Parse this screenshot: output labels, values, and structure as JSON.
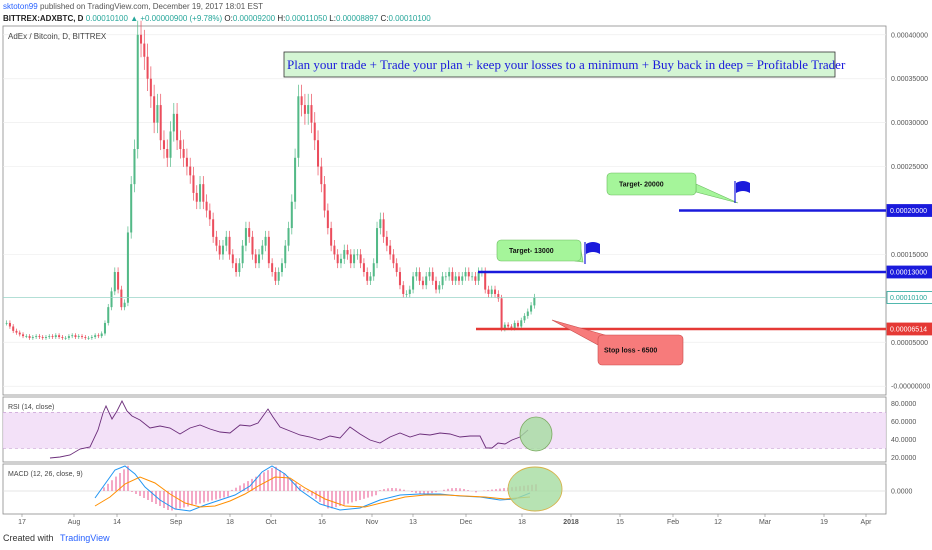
{
  "header": {
    "author": "sktoton99",
    "published_text": "published on TradingView.com, December 19, 2017 18:01 EST",
    "symbol": "BITTREX:ADXBTC, D",
    "last": "0.00010100",
    "change": "▲ +0.00000900 (+9.78%)",
    "o_label": "O:",
    "o": "0.00009200",
    "h_label": "H:",
    "h": "0.00011050",
    "l_label": "L:",
    "l": "0.00008897",
    "c_label": "C:",
    "c": "0.00010100"
  },
  "chart_data": {
    "type": "candlestick",
    "title": "AdEx / Bitcoin, D, BITTREX",
    "annotation_banner": "Plan your trade + Trade your plan + keep your losses to a minimum + Buy back in deep = Profitable Trader",
    "y_ticks": [
      "0.00040000",
      "0.00035000",
      "0.00030000",
      "0.00025000",
      "0.00015000",
      "0.00005000",
      "-0.00000000"
    ],
    "y_tick_values": [
      0.0004,
      0.00035,
      0.0003,
      0.00025,
      0.00015,
      5e-05,
      0.0
    ],
    "ylim": [
      -1e-05,
      0.00041
    ],
    "x_ticks": [
      "17",
      "Aug",
      "14",
      "Sep",
      "18",
      "Oct",
      "16",
      "Nov",
      "13",
      "Dec",
      "18",
      "2018",
      "15",
      "Feb",
      "12",
      "Mar",
      "19",
      "Apr"
    ],
    "price_levels": [
      {
        "label": "0.00020000",
        "value": 0.0002,
        "color": "#1a1adc"
      },
      {
        "label": "0.00013000",
        "value": 0.00013,
        "color": "#1a1adc"
      },
      {
        "label": "0.00010100",
        "value": 0.000101,
        "color": "#26a69a"
      },
      {
        "label": "0.00006514",
        "value": 6.514e-05,
        "color": "#e53935"
      }
    ],
    "callouts": [
      {
        "text": "Target- 20000",
        "kind": "target"
      },
      {
        "text": "Target- 13000",
        "kind": "target"
      },
      {
        "text": "Stop loss - 6500",
        "kind": "stop"
      }
    ],
    "close_series": [
      7.2e-05,
      6.8e-05,
      6.3e-05,
      6.1e-05,
      5.9e-05,
      5.7e-05,
      5.7e-05,
      5.5e-05,
      5.6e-05,
      5.7e-05,
      5.6e-05,
      5.5e-05,
      5.6e-05,
      5.7e-05,
      5.6e-05,
      5.8e-05,
      5.6e-05,
      5.5e-05,
      5.5e-05,
      5.7e-05,
      5.8e-05,
      5.6e-05,
      5.7e-05,
      5.6e-05,
      5.5e-05,
      5.5e-05,
      5.6e-05,
      5.8e-05,
      5.7e-05,
      6e-05,
      7.2e-05,
      9e-05,
      0.000108,
      0.00013,
      0.00011,
      9e-05,
      9.5e-05,
      0.000175,
      0.00023,
      0.00027,
      0.0004,
      0.00039,
      0.000375,
      0.00035,
      0.00033,
      0.0003,
      0.00032,
      0.00028,
      0.00027,
      0.00026,
      0.00029,
      0.00031,
      0.00028,
      0.00027,
      0.00026,
      0.00025,
      0.00024,
      0.00022,
      0.00021,
      0.00023,
      0.00021,
      0.0002,
      0.00019,
      0.00017,
      0.00016,
      0.00015,
      0.00016,
      0.00017,
      0.00015,
      0.00014,
      0.00013,
      0.00014,
      0.00016,
      0.00018,
      0.00017,
      0.00015,
      0.00014,
      0.00015,
      0.00016,
      0.00017,
      0.00014,
      0.00013,
      0.00012,
      0.00013,
      0.00014,
      0.00016,
      0.00018,
      0.00021,
      0.00026,
      0.00033,
      0.00032,
      0.00031,
      0.00032,
      0.0003,
      0.00028,
      0.00025,
      0.00023,
      0.0002,
      0.00018,
      0.00016,
      0.00015,
      0.00014,
      0.000145,
      0.000155,
      0.00015,
      0.00014,
      0.00015,
      0.00015,
      0.00014,
      0.00013,
      0.00012,
      0.000125,
      0.00014,
      0.00018,
      0.00019,
      0.00017,
      0.00016,
      0.00015,
      0.00014,
      0.00013,
      0.000115,
      0.000105,
      0.000105,
      0.00011,
      0.000125,
      0.00013,
      0.00012,
      0.000115,
      0.000125,
      0.00013,
      0.00012,
      0.00011,
      0.000115,
      0.000125,
      0.000125,
      0.00013,
      0.00012,
      0.000125,
      0.00012,
      0.000125,
      0.00013,
      0.000125,
      0.000125,
      0.00012,
      0.00013,
      0.00013,
      0.00011,
      0.000105,
      0.00011,
      0.000105,
      0.0001,
      6.5e-05,
      7e-05,
      6.8e-05,
      6.6e-05,
      7.2e-05,
      6.8e-05,
      7.5e-05,
      8e-05,
      8.5e-05,
      9.2e-05,
      0.000101
    ],
    "rsi": {
      "label": "RSI (14, close)",
      "y_ticks": [
        "80.0000",
        "60.0000",
        "40.0000",
        "20.0000"
      ],
      "y_tick_values": [
        80,
        60,
        40,
        20
      ],
      "band": [
        30,
        70
      ],
      "ylim": [
        15,
        87
      ]
    },
    "macd": {
      "label": "MACD (12, 26, close, 9)",
      "y_ticks": [
        "0.0000"
      ],
      "y_tick_values": [
        0
      ]
    },
    "grid": true,
    "legend": "none"
  },
  "footer": {
    "created_with": "Created with",
    "brand": "TradingView"
  }
}
